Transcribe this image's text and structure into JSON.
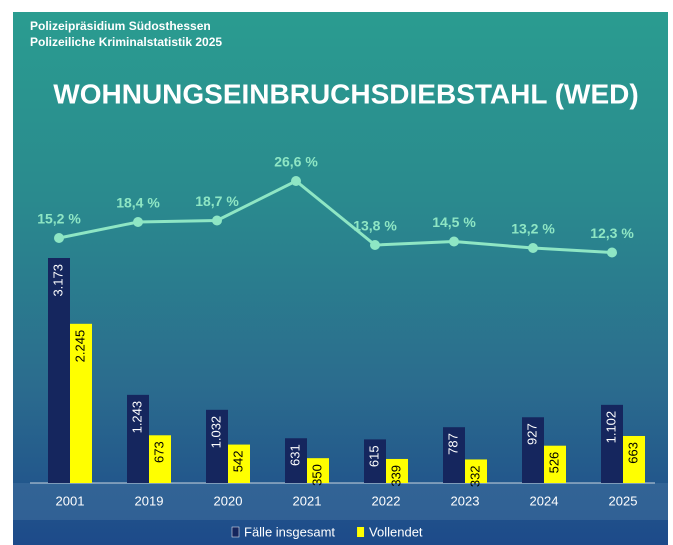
{
  "header": {
    "org": "Polizeipräsidium Südosthessen",
    "subtitle": "Polizeiliche Kriminalstatistik 2025"
  },
  "chart_data": {
    "type": "bar",
    "title": "WOHNUNGSEINBRUCHSDIEBSTAHL (WED)",
    "categories": [
      "2001",
      "2019",
      "2020",
      "2021",
      "2022",
      "2023",
      "2024",
      "2025"
    ],
    "series": [
      {
        "name": "Fälle insgesamt",
        "color": "#15265e",
        "values": [
          3173,
          1243,
          1032,
          631,
          615,
          787,
          927,
          1102
        ],
        "value_labels": [
          "3.173",
          "1.243",
          "1.032",
          "631",
          "615",
          "787",
          "927",
          "1.102"
        ]
      },
      {
        "name": "Vollendet",
        "color": "#ffff00",
        "values": [
          2245,
          673,
          542,
          350,
          339,
          332,
          526,
          663
        ],
        "value_labels": [
          "2.245",
          "673",
          "542",
          "350",
          "339",
          "332",
          "526",
          "663"
        ]
      }
    ],
    "rate": {
      "type": "line",
      "color": "#8ee6c4",
      "values": [
        15.2,
        18.4,
        18.7,
        26.6,
        13.8,
        14.5,
        13.2,
        12.3
      ],
      "value_labels": [
        "15,2 %",
        "18,4 %",
        "18,7 %",
        "26,6 %",
        "13,8 %",
        "14,5 %",
        "13,2 %",
        "12,3 %"
      ]
    }
  }
}
